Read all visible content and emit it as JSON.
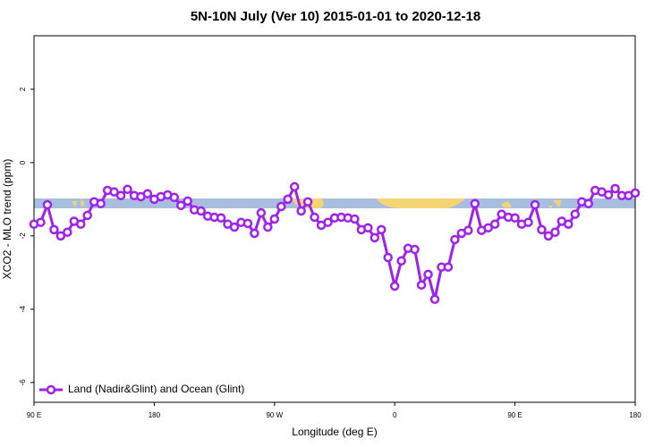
{
  "chart_data": {
    "type": "line",
    "title": "5N-10N July (Ver 10)   2015-01-01 to 2020-12-18",
    "xlabel": "Longitude (deg E)",
    "ylabel": "XCO2 - MLO trend (ppm)",
    "x": [
      90,
      95,
      100,
      105,
      110,
      115,
      120,
      125,
      130,
      135,
      140,
      145,
      150,
      155,
      160,
      165,
      170,
      175,
      180,
      185,
      190,
      195,
      200,
      205,
      210,
      215,
      220,
      225,
      230,
      235,
      240,
      245,
      250,
      255,
      260,
      265,
      270,
      275,
      280,
      285,
      290,
      295,
      300,
      305,
      310,
      315,
      320,
      325,
      330,
      335,
      340,
      345,
      350,
      355,
      360,
      365,
      370,
      375,
      380,
      385,
      390,
      395,
      400,
      405,
      410,
      415,
      420,
      425,
      430,
      435,
      440,
      445,
      450,
      455,
      460,
      465,
      470,
      475,
      480,
      485,
      490,
      495,
      500,
      505,
      510,
      515,
      520,
      525,
      530,
      535,
      540
    ],
    "series": [
      {
        "name": "Land (Nadir&Glint) and Ocean (Glint)",
        "color": "#a020f0",
        "values": [
          -1.68,
          -1.63,
          -1.15,
          -1.83,
          -2.0,
          -1.9,
          -1.6,
          -1.68,
          -1.44,
          -1.07,
          -1.12,
          -0.76,
          -0.8,
          -0.9,
          -0.73,
          -0.9,
          -0.93,
          -0.85,
          -1.0,
          -0.93,
          -0.88,
          -0.95,
          -1.17,
          -1.05,
          -1.29,
          -1.32,
          -1.46,
          -1.49,
          -1.51,
          -1.68,
          -1.76,
          -1.63,
          -1.66,
          -1.93,
          -1.37,
          -1.76,
          -1.54,
          -1.2,
          -1.0,
          -0.66,
          -1.32,
          -1.07,
          -1.49,
          -1.71,
          -1.63,
          -1.51,
          -1.49,
          -1.51,
          -1.54,
          -1.83,
          -1.78,
          -2.05,
          -1.83,
          -2.59,
          -3.37,
          -2.68,
          -2.34,
          -2.37,
          -3.34,
          -3.05,
          -3.73,
          -2.85,
          -2.85,
          -2.1,
          -1.93,
          -1.85,
          -1.12,
          -1.85,
          -1.78,
          -1.68,
          -1.41,
          -1.49,
          -1.51,
          -1.68,
          -1.63,
          -1.15,
          -1.83,
          -2.0,
          -1.9,
          -1.6,
          -1.68,
          -1.41,
          -1.07,
          -1.12,
          -0.76,
          -0.8,
          -0.88,
          -0.71,
          -0.9,
          -0.9,
          -0.83
        ]
      }
    ],
    "xlim": [
      90,
      540
    ],
    "xticks": [
      {
        "value": 90,
        "label": "90 E"
      },
      180,
      {
        "value": 270,
        "label": "90 W"
      },
      {
        "value": 360,
        "label": "0"
      },
      {
        "value": 450,
        "label": "90 E"
      },
      {
        "value": 540,
        "label": "180"
      }
    ],
    "ylim": [
      -6.54,
      3.46
    ],
    "yticks": [
      2,
      0,
      -2,
      -4,
      -6
    ],
    "grid": false,
    "legend": "bottom-left"
  }
}
